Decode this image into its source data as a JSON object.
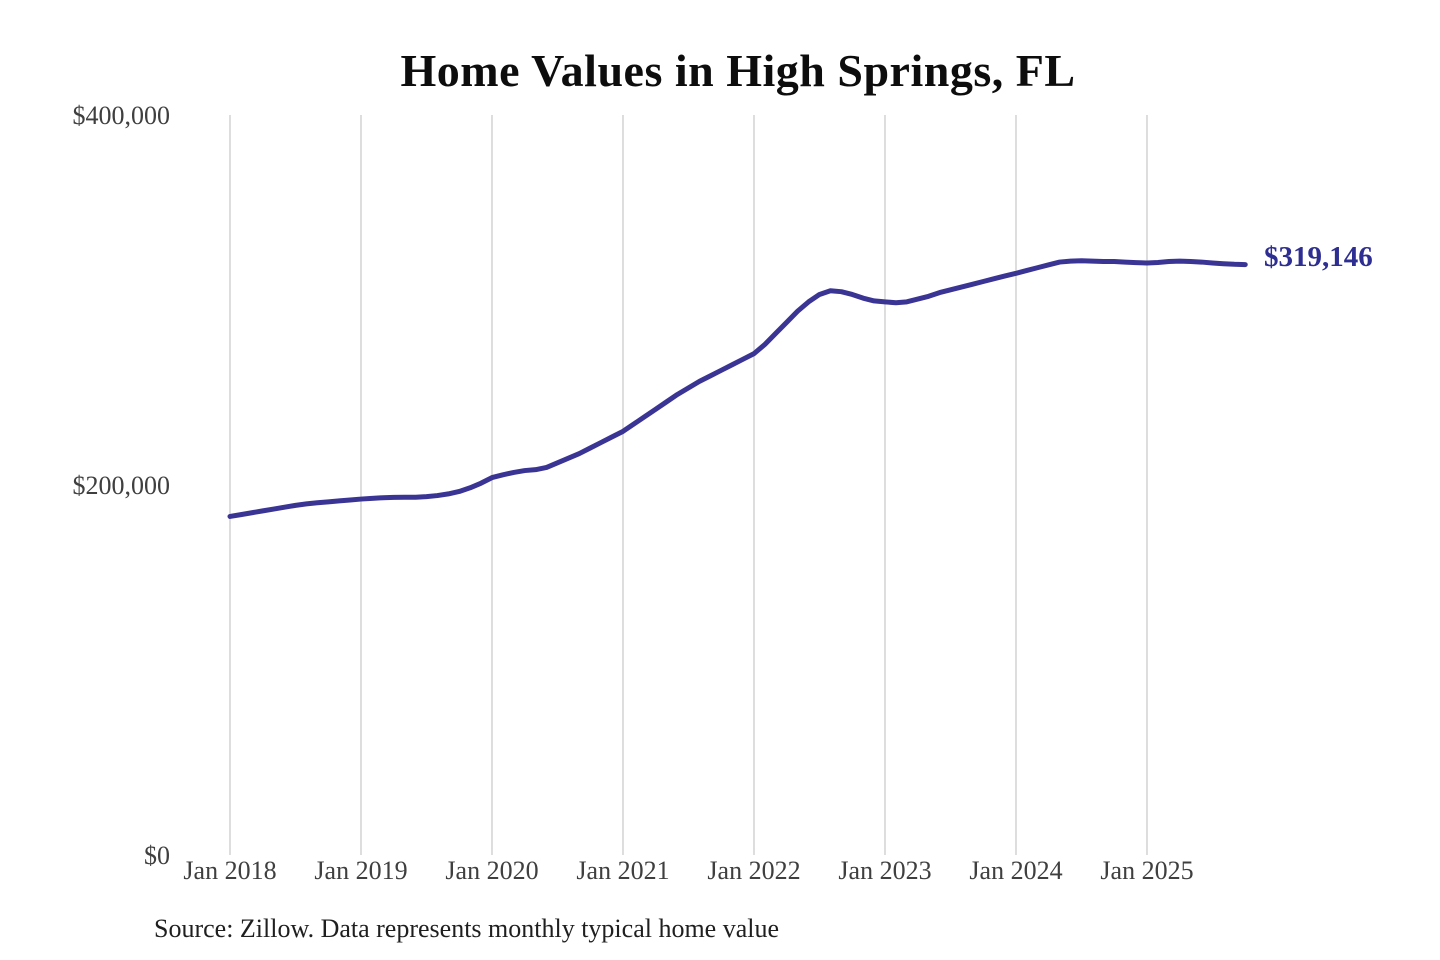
{
  "page": {
    "background_color": "#ffffff"
  },
  "chart": {
    "title": "Home Values in High Springs, FL",
    "source_note": "Source: Zillow. Data represents monthly typical home value",
    "latest_value_label": "$319,146"
  },
  "chart_data": {
    "type": "line",
    "title": "Home Values in High Springs, FL",
    "series_name": "Monthly typical home value",
    "x_start_month": "2018-01",
    "x_end_month": "2025-10",
    "x_tick_labels": [
      "Jan 2018",
      "Jan 2019",
      "Jan 2020",
      "Jan 2021",
      "Jan 2022",
      "Jan 2023",
      "Jan 2024",
      "Jan 2025"
    ],
    "y_tick_labels": [
      "$0",
      "$200,000",
      "$400,000"
    ],
    "ylim": [
      0,
      400000
    ],
    "grid": "vertical-only",
    "legend": "none",
    "end_label": "$319,146",
    "line_color": "#3a3494",
    "end_label_color": "#2d2d92",
    "grid_color": "#cbcbcb",
    "axis_text_color": "#3f3f3f",
    "monthly_values": [
      183000,
      184000,
      185000,
      186000,
      187000,
      188000,
      189000,
      189800,
      190400,
      190900,
      191400,
      191900,
      192400,
      192800,
      193100,
      193300,
      193400,
      193400,
      193700,
      194300,
      195200,
      196500,
      198500,
      201000,
      204000,
      205500,
      206800,
      207800,
      208300,
      209500,
      212000,
      214500,
      217000,
      220000,
      223000,
      226000,
      229000,
      233000,
      237000,
      241000,
      245000,
      249000,
      252500,
      256000,
      259000,
      262000,
      265000,
      268000,
      271000,
      276000,
      282000,
      288000,
      294000,
      299000,
      303000,
      305000,
      304500,
      303000,
      301000,
      299500,
      299000,
      298500,
      299000,
      300500,
      302000,
      304000,
      305500,
      307000,
      308500,
      310000,
      311500,
      313000,
      314400,
      316000,
      317500,
      319000,
      320500,
      321000,
      321200,
      321000,
      320800,
      320800,
      320500,
      320200,
      320000,
      320300,
      320800,
      321000,
      320800,
      320500,
      320000,
      319600,
      319300,
      319146
    ]
  }
}
